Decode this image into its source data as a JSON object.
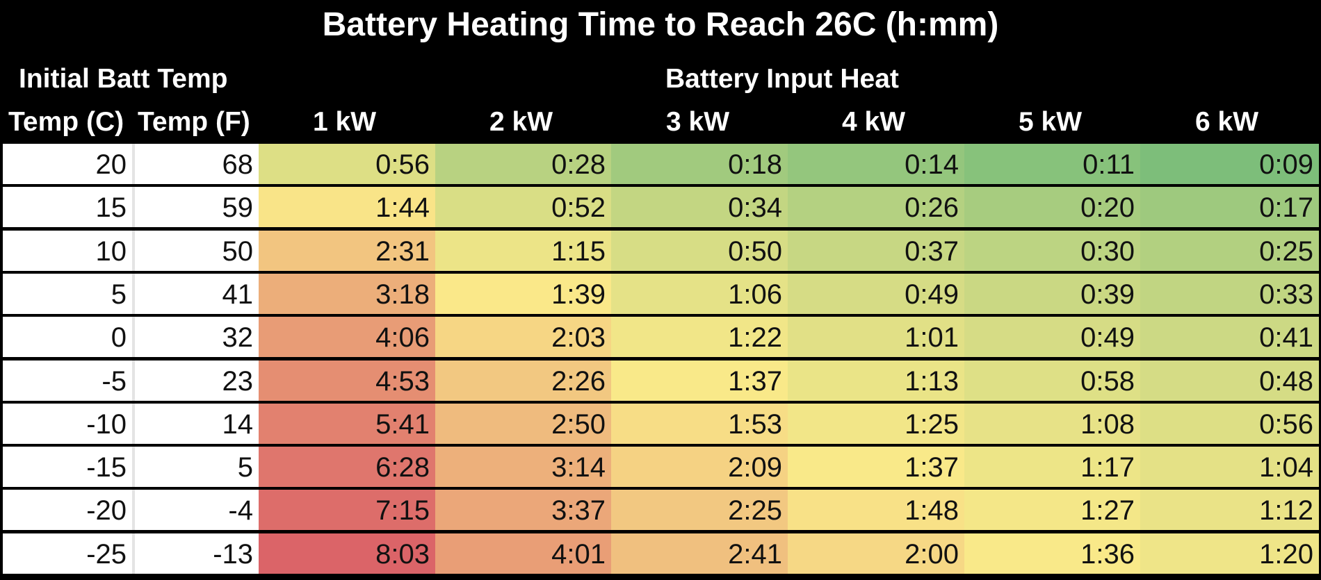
{
  "chart_data": {
    "type": "table",
    "title": "Battery Heating Time to Reach 26C (h:mm)",
    "group_headers": [
      "Initial Batt Temp",
      "Battery Input Heat"
    ],
    "columns": [
      "Temp (C)",
      "Temp (F)",
      "1 kW",
      "2 kW",
      "3 kW",
      "4 kW",
      "5 kW",
      "6 kW"
    ],
    "rows": [
      [
        "20",
        "68",
        "0:56",
        "0:28",
        "0:18",
        "0:14",
        "0:11",
        "0:09"
      ],
      [
        "15",
        "59",
        "1:44",
        "0:52",
        "0:34",
        "0:26",
        "0:20",
        "0:17"
      ],
      [
        "10",
        "50",
        "2:31",
        "1:15",
        "0:50",
        "0:37",
        "0:30",
        "0:25"
      ],
      [
        "5",
        "41",
        "3:18",
        "1:39",
        "1:06",
        "0:49",
        "0:39",
        "0:33"
      ],
      [
        "0",
        "32",
        "4:06",
        "2:03",
        "1:22",
        "1:01",
        "0:49",
        "0:41"
      ],
      [
        "-5",
        "23",
        "4:53",
        "2:26",
        "1:37",
        "1:13",
        "0:58",
        "0:48"
      ],
      [
        "-10",
        "14",
        "5:41",
        "2:50",
        "1:53",
        "1:25",
        "1:08",
        "0:56"
      ],
      [
        "-15",
        "5",
        "6:28",
        "3:14",
        "2:09",
        "1:37",
        "1:17",
        "1:04"
      ],
      [
        "-20",
        "-4",
        "7:15",
        "3:37",
        "2:25",
        "1:48",
        "1:27",
        "1:12"
      ],
      [
        "-25",
        "-13",
        "8:03",
        "4:01",
        "2:41",
        "2:00",
        "1:36",
        "1:20"
      ]
    ],
    "color_scale": {
      "low": "#7dbe7a",
      "mid": "#fae989",
      "high": "#db6468"
    },
    "grid": true
  }
}
